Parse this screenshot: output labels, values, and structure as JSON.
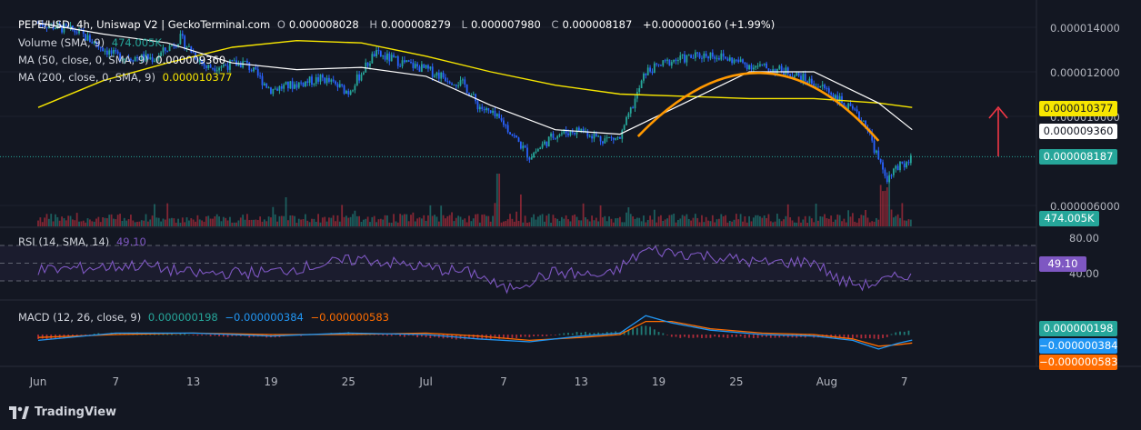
{
  "legend": {
    "symbol": "PEPE/USD, 4h, Uniswap V2 | GeckoTerminal.com",
    "o_label": "O",
    "o_value": "0.000008028",
    "h_label": "H",
    "h_value": "0.000008279",
    "l_label": "L",
    "l_value": "0.000007980",
    "c_label": "C",
    "c_value": "0.000008187",
    "change": "+0.000000160 (+1.99%)",
    "volume_label": "Volume (SMA, 9)",
    "volume_value": "474.005K",
    "ma50_label": "MA (50, close, 0, SMA, 9)",
    "ma50_value": "0.000009360",
    "ma200_label": "MA (200, close, 0, SMA, 9)",
    "ma200_value": "0.000010377",
    "rsi_label": "RSI (14, SMA, 14)",
    "rsi_value": "49.10",
    "macd_label": "MACD (12, 26, close, 9)",
    "macd_hist": "0.000000198",
    "macd_line": "−0.000000384",
    "macd_signal": "−0.000000583"
  },
  "price_axis": [
    "0.000014000",
    "0.000012000",
    "0.000010000",
    "0.000006000"
  ],
  "tags": {
    "ma200": "0.000010377",
    "ma50": "0.000009360",
    "close": "0.000008187",
    "volume": "474.005K",
    "rsi": "49.10",
    "macd_hist": "0.000000198",
    "macd_line": "−0.000000384",
    "macd_signal": "−0.000000583"
  },
  "rsi_axis": [
    "80.00",
    "40.00"
  ],
  "x_axis": [
    "Jun",
    "7",
    "13",
    "19",
    "25",
    "Jul",
    "7",
    "13",
    "19",
    "25",
    "Aug",
    "7"
  ],
  "colors": {
    "background": "#131722",
    "candle_up": "#26a69a",
    "candle_down": "#2962ff",
    "ma50": "#ffffff",
    "ma200": "#f7e600",
    "rsi": "#7e57c2",
    "macd": "#2196f3",
    "signal": "#ff6d00",
    "arc": "#ff9800",
    "arrow": "#f23645"
  },
  "brand": "TradingView",
  "chart_data": {
    "type": "candlestick",
    "title": "PEPE/USD, 4h, Uniswap V2 | GeckoTerminal.com",
    "xlabel": "",
    "ylabel": "",
    "ylim": [
      5.7e-06,
      1.44e-05
    ],
    "x_ticks": [
      "Jun",
      "7",
      "13",
      "19",
      "25",
      "Jul",
      "7",
      "13",
      "19",
      "25",
      "Aug",
      "7"
    ],
    "close_path": {
      "x_day": [
        0,
        3,
        6,
        9,
        11,
        13,
        16,
        18,
        22,
        24,
        26,
        30,
        33,
        34,
        36,
        38,
        40,
        42,
        43.5,
        45,
        47,
        49,
        52,
        55,
        58,
        61,
        64,
        65.5,
        67,
        67.6
      ],
      "y": [
        1.42e-05,
        1.38e-05,
        1.27e-05,
        1.26e-05,
        1.35e-05,
        1.22e-05,
        1.24e-05,
        1.12e-05,
        1.17e-05,
        1.11e-05,
        1.28e-05,
        1.21e-05,
        1.14e-05,
        1.05e-05,
        9.7e-06,
        8.2e-06,
        9.2e-06,
        9.4e-06,
        9e-06,
        9e-06,
        1.2e-05,
        1.25e-05,
        1.28e-05,
        1.23e-05,
        1.2e-05,
        1.12e-05,
        9.7e-06,
        7.2e-06,
        7.9e-06,
        8.2e-06
      ]
    },
    "close": 8.187e-06,
    "series": [
      {
        "name": "MA (50, close, 0, SMA, 9)",
        "last": 9.36e-06,
        "x_day": [
          0,
          5,
          10,
          15,
          20,
          25,
          30,
          35,
          40,
          45,
          50,
          55,
          60,
          65,
          67.6
        ],
        "y": [
          1.42e-05,
          1.37e-05,
          1.33e-05,
          1.24e-05,
          1.21e-05,
          1.22e-05,
          1.18e-05,
          1.05e-05,
          9.4e-06,
          9.2e-06,
          1.06e-05,
          1.2e-05,
          1.2e-05,
          1.06e-05,
          9.4e-06
        ]
      },
      {
        "name": "MA (200, close, 0, SMA, 9)",
        "last": 1.0377e-05,
        "x_day": [
          0,
          5,
          10,
          15,
          20,
          25,
          30,
          35,
          40,
          45,
          50,
          55,
          60,
          65,
          67.6
        ],
        "y": [
          1.04e-05,
          1.16e-05,
          1.24e-05,
          1.31e-05,
          1.34e-05,
          1.33e-05,
          1.27e-05,
          1.2e-05,
          1.14e-05,
          1.1e-05,
          1.09e-05,
          1.08e-05,
          1.08e-05,
          1.06e-05,
          1.04e-05
        ]
      }
    ],
    "volume": {
      "last": "474.005K"
    },
    "rsi": {
      "name": "RSI (14, SMA, 14)",
      "levels": [
        80,
        40
      ],
      "last": 49.1,
      "x_day": [
        0,
        8,
        12,
        18,
        25,
        30,
        34,
        36,
        40,
        44,
        47,
        52,
        56,
        60,
        62,
        64,
        66,
        67.6
      ],
      "y": [
        52,
        58,
        48,
        50,
        65,
        55,
        48,
        30,
        50,
        45,
        75,
        68,
        60,
        62,
        40,
        35,
        42,
        49
      ]
    },
    "macd": {
      "name": "MACD (12, 26, close, 9)",
      "hist_last": 1.98e-07,
      "macd_last": -3.84e-07,
      "signal_last": -5.83e-07,
      "x_day": [
        0,
        6,
        12,
        18,
        24,
        30,
        34,
        38,
        42,
        45,
        47,
        49,
        52,
        56,
        60,
        63,
        65,
        66.5,
        67.6
      ],
      "macd": [
        -0.4,
        0.1,
        0.1,
        -0.1,
        0.1,
        0.0,
        -0.3,
        -0.5,
        -0.1,
        0.1,
        1.3,
        0.8,
        0.3,
        0.0,
        -0.1,
        -0.4,
        -1.0,
        -0.6,
        -0.384
      ],
      "signal": [
        -0.2,
        0.0,
        0.1,
        0.0,
        0.0,
        0.1,
        -0.1,
        -0.4,
        -0.2,
        0.0,
        0.9,
        0.9,
        0.4,
        0.1,
        0.0,
        -0.3,
        -0.8,
        -0.7,
        -0.583
      ]
    }
  }
}
